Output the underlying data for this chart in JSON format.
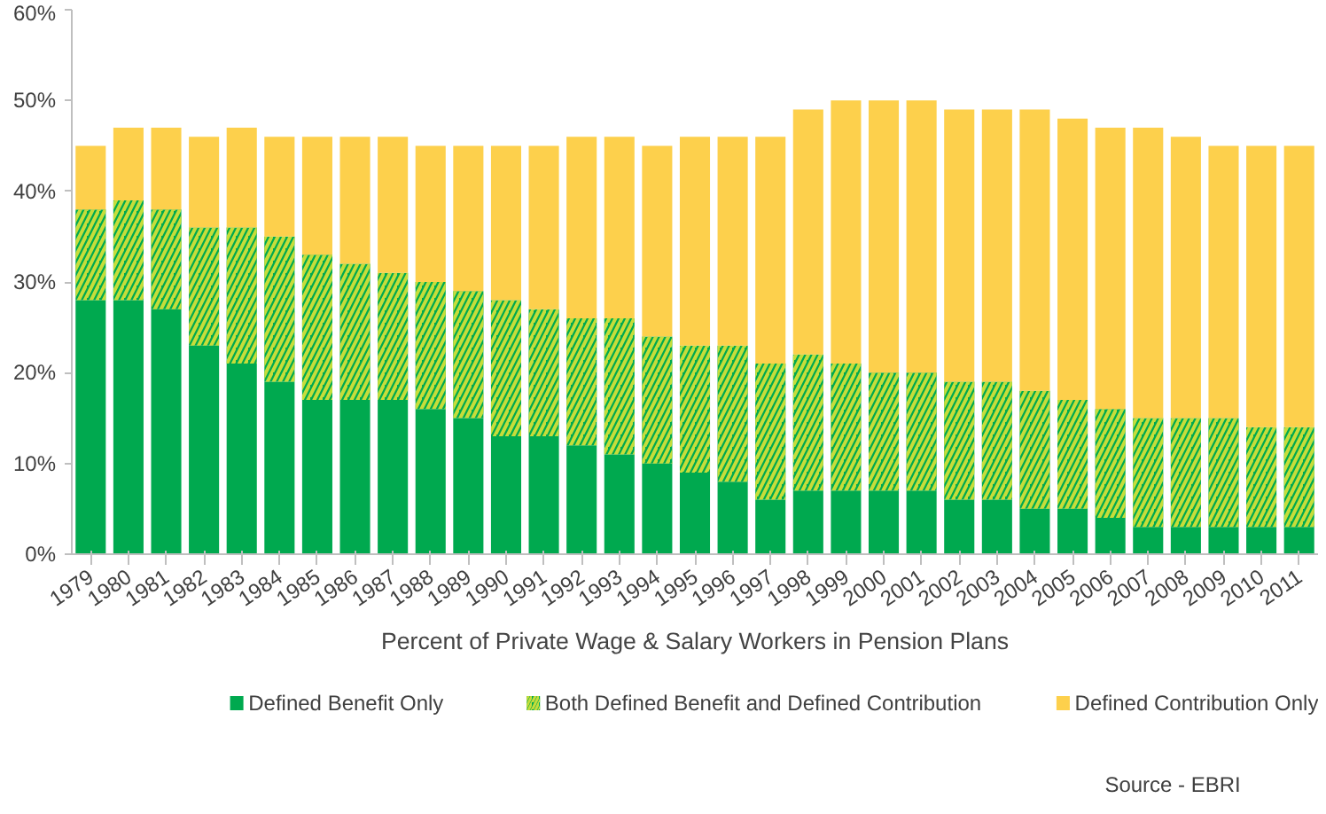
{
  "chart_data": {
    "type": "bar",
    "stacked": true,
    "categories": [
      "1979",
      "1980",
      "1981",
      "1982",
      "1983",
      "1984",
      "1985",
      "1986",
      "1987",
      "1988",
      "1989",
      "1990",
      "1991",
      "1992",
      "1993",
      "1994",
      "1995",
      "1996",
      "1997",
      "1998",
      "1999",
      "2000",
      "2001",
      "2002",
      "2003",
      "2004",
      "2005",
      "2006",
      "2007",
      "2008",
      "2009",
      "2010",
      "2011"
    ],
    "xlabel": "Percent of Private Wage & Salary Workers in Pension Plans",
    "series": [
      {
        "name": "Defined Benefit Only",
        "color": "#00a94f",
        "values": [
          28,
          28,
          27,
          23,
          21,
          19,
          17,
          17,
          17,
          16,
          15,
          13,
          13,
          12,
          11,
          10,
          9,
          8,
          6,
          7,
          7,
          7,
          7,
          6,
          6,
          5,
          5,
          4,
          3,
          3,
          3,
          3,
          3
        ]
      },
      {
        "name": "Both Defined Benefit and Defined Contribution",
        "color": "#00a94f",
        "values": [
          10,
          11,
          11,
          13,
          15,
          16,
          16,
          15,
          14,
          14,
          14,
          15,
          14,
          14,
          15,
          14,
          14,
          15,
          15,
          15,
          14,
          13,
          13,
          13,
          13,
          13,
          12,
          12,
          12,
          12,
          12,
          11,
          11
        ]
      },
      {
        "name": "Defined Contribution Only",
        "color": "#fdd04c",
        "values": [
          7,
          8,
          9,
          10,
          11,
          11,
          13,
          14,
          15,
          15,
          16,
          17,
          18,
          20,
          20,
          21,
          23,
          23,
          25,
          27,
          29,
          30,
          30,
          30,
          30,
          31,
          31,
          31,
          32,
          31,
          30,
          31,
          31
        ]
      }
    ],
    "ylim": [
      0,
      60
    ],
    "yticks": [
      {
        "value": 0,
        "label": "0%"
      },
      {
        "value": 10,
        "label": "10%"
      },
      {
        "value": 20,
        "label": "20%"
      },
      {
        "value": 30,
        "label": "30%"
      },
      {
        "value": 40,
        "label": "40%"
      },
      {
        "value": 50,
        "label": "50%"
      },
      {
        "value": 60,
        "label": "60%"
      }
    ],
    "grid": false,
    "legend": "bottom",
    "annotations": [
      "Source - EBRI"
    ]
  }
}
